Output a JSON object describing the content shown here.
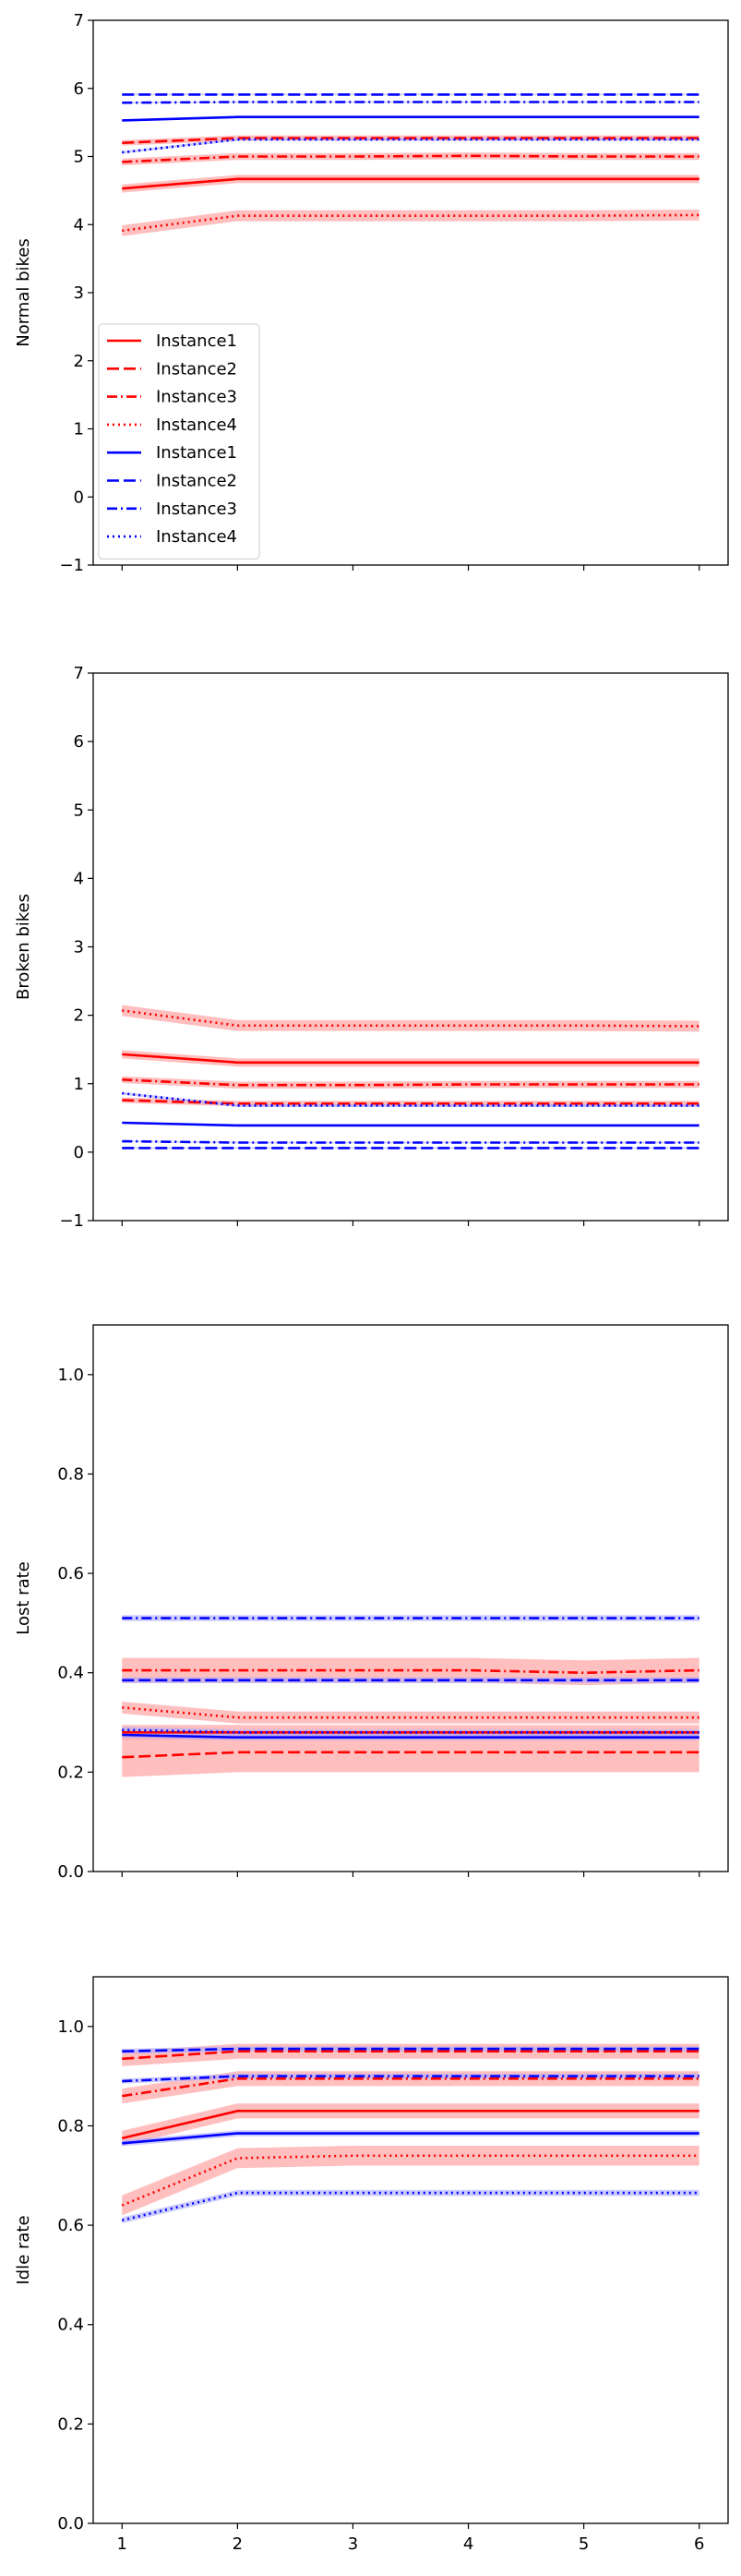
{
  "x_ticks": [
    1,
    2,
    3,
    4,
    5,
    6
  ],
  "colors": {
    "red": "#ff0000",
    "blue": "#0000ff",
    "red_band": "#ffaaaa",
    "blue_band": "#aaaaff"
  },
  "legend": {
    "placement": "center-left",
    "entries": [
      {
        "label": "Instance1",
        "color": "red",
        "style": "solid"
      },
      {
        "label": "Instance2",
        "color": "red",
        "style": "dashed"
      },
      {
        "label": "Instance3",
        "color": "red",
        "style": "dashdot"
      },
      {
        "label": "Instance4",
        "color": "red",
        "style": "dotted"
      },
      {
        "label": "Instance1",
        "color": "blue",
        "style": "solid"
      },
      {
        "label": "Instance2",
        "color": "blue",
        "style": "dashed"
      },
      {
        "label": "Instance3",
        "color": "blue",
        "style": "dashdot"
      },
      {
        "label": "Instance4",
        "color": "blue",
        "style": "dotted"
      }
    ]
  },
  "chart_data": [
    {
      "type": "line",
      "ylabel": "Normal bikes",
      "ylim": [
        -1,
        7
      ],
      "yticks": [
        "−1",
        "0",
        "1",
        "2",
        "3",
        "4",
        "5",
        "6",
        "7"
      ],
      "ytick_values": [
        -1,
        0,
        1,
        2,
        3,
        4,
        5,
        6,
        7
      ],
      "x": [
        1,
        2,
        3,
        4,
        5,
        6
      ],
      "show_xtick_labels": false,
      "series": [
        {
          "name": "Instance1",
          "color": "red",
          "style": "solid",
          "values": [
            4.53,
            4.67,
            4.67,
            4.67,
            4.67,
            4.67
          ],
          "band": 0.06
        },
        {
          "name": "Instance2",
          "color": "red",
          "style": "dashed",
          "values": [
            5.2,
            5.27,
            5.27,
            5.27,
            5.27,
            5.27
          ],
          "band": 0.04
        },
        {
          "name": "Instance3",
          "color": "red",
          "style": "dashdot",
          "values": [
            4.92,
            5.0,
            5.0,
            5.01,
            5.0,
            5.0
          ],
          "band": 0.05
        },
        {
          "name": "Instance4",
          "color": "red",
          "style": "dotted",
          "values": [
            3.91,
            4.13,
            4.13,
            4.13,
            4.13,
            4.14
          ],
          "band": 0.08
        },
        {
          "name": "Instance1",
          "color": "blue",
          "style": "solid",
          "values": [
            5.53,
            5.58,
            5.58,
            5.58,
            5.58,
            5.58
          ],
          "band": 0.01
        },
        {
          "name": "Instance2",
          "color": "blue",
          "style": "dashed",
          "values": [
            5.91,
            5.91,
            5.91,
            5.91,
            5.91,
            5.91
          ],
          "band": 0.01
        },
        {
          "name": "Instance3",
          "color": "blue",
          "style": "dashdot",
          "values": [
            5.79,
            5.8,
            5.8,
            5.8,
            5.8,
            5.8
          ],
          "band": 0.01
        },
        {
          "name": "Instance4",
          "color": "blue",
          "style": "dotted",
          "values": [
            5.06,
            5.25,
            5.25,
            5.25,
            5.25,
            5.25
          ],
          "band": 0.02
        }
      ]
    },
    {
      "type": "line",
      "ylabel": "Broken bikes",
      "ylim": [
        -1,
        7
      ],
      "yticks": [
        "−1",
        "0",
        "1",
        "2",
        "3",
        "4",
        "5",
        "6",
        "7"
      ],
      "ytick_values": [
        -1,
        0,
        1,
        2,
        3,
        4,
        5,
        6,
        7
      ],
      "x": [
        1,
        2,
        3,
        4,
        5,
        6
      ],
      "show_xtick_labels": false,
      "series": [
        {
          "name": "Instance1",
          "color": "red",
          "style": "solid",
          "values": [
            1.43,
            1.31,
            1.31,
            1.31,
            1.31,
            1.31
          ],
          "band": 0.06
        },
        {
          "name": "Instance2",
          "color": "red",
          "style": "dashed",
          "values": [
            0.76,
            0.71,
            0.71,
            0.71,
            0.71,
            0.71
          ],
          "band": 0.04
        },
        {
          "name": "Instance3",
          "color": "red",
          "style": "dashdot",
          "values": [
            1.06,
            0.98,
            0.98,
            0.99,
            0.99,
            0.99
          ],
          "band": 0.05
        },
        {
          "name": "Instance4",
          "color": "red",
          "style": "dotted",
          "values": [
            2.07,
            1.85,
            1.85,
            1.85,
            1.85,
            1.84
          ],
          "band": 0.08
        },
        {
          "name": "Instance1",
          "color": "blue",
          "style": "solid",
          "values": [
            0.43,
            0.39,
            0.39,
            0.39,
            0.39,
            0.39
          ],
          "band": 0.01
        },
        {
          "name": "Instance2",
          "color": "blue",
          "style": "dashed",
          "values": [
            0.06,
            0.06,
            0.06,
            0.06,
            0.06,
            0.06
          ],
          "band": 0.01
        },
        {
          "name": "Instance3",
          "color": "blue",
          "style": "dashdot",
          "values": [
            0.16,
            0.14,
            0.14,
            0.14,
            0.14,
            0.14
          ],
          "band": 0.01
        },
        {
          "name": "Instance4",
          "color": "blue",
          "style": "dotted",
          "values": [
            0.86,
            0.68,
            0.68,
            0.68,
            0.68,
            0.68
          ],
          "band": 0.02
        }
      ]
    },
    {
      "type": "line",
      "ylabel": "Lost rate",
      "ylim": [
        0,
        1.1
      ],
      "yticks": [
        "0.0",
        "0.2",
        "0.4",
        "0.6",
        "0.8",
        "1.0"
      ],
      "ytick_values": [
        0,
        0.2,
        0.4,
        0.6,
        0.8,
        1.0
      ],
      "x": [
        1,
        2,
        3,
        4,
        5,
        6
      ],
      "show_xtick_labels": false,
      "series": [
        {
          "name": "Instance1",
          "color": "red",
          "style": "solid",
          "values": [
            0.28,
            0.28,
            0.28,
            0.28,
            0.28,
            0.28
          ],
          "band": 0.015
        },
        {
          "name": "Instance2",
          "color": "red",
          "style": "dashed",
          "values": [
            0.23,
            0.24,
            0.24,
            0.24,
            0.24,
            0.24
          ],
          "band": 0.04
        },
        {
          "name": "Instance3",
          "color": "red",
          "style": "dashdot",
          "values": [
            0.405,
            0.405,
            0.405,
            0.405,
            0.4,
            0.405
          ],
          "band": 0.025
        },
        {
          "name": "Instance4",
          "color": "red",
          "style": "dotted",
          "values": [
            0.33,
            0.31,
            0.31,
            0.31,
            0.31,
            0.31
          ],
          "band": 0.012
        },
        {
          "name": "Instance1",
          "color": "blue",
          "style": "solid",
          "values": [
            0.275,
            0.27,
            0.27,
            0.27,
            0.27,
            0.27
          ],
          "band": 0.006
        },
        {
          "name": "Instance2",
          "color": "blue",
          "style": "dashed",
          "values": [
            0.385,
            0.385,
            0.385,
            0.385,
            0.385,
            0.385
          ],
          "band": 0.006
        },
        {
          "name": "Instance3",
          "color": "blue",
          "style": "dashdot",
          "values": [
            0.51,
            0.51,
            0.51,
            0.51,
            0.51,
            0.51
          ],
          "band": 0.006
        },
        {
          "name": "Instance4",
          "color": "blue",
          "style": "dotted",
          "values": [
            0.285,
            0.28,
            0.28,
            0.28,
            0.28,
            0.28
          ],
          "band": 0.006
        }
      ]
    },
    {
      "type": "line",
      "ylabel": "Idle rate",
      "ylim": [
        0,
        1.1
      ],
      "yticks": [
        "0.0",
        "0.2",
        "0.4",
        "0.6",
        "0.8",
        "1.0"
      ],
      "ytick_values": [
        0,
        0.2,
        0.4,
        0.6,
        0.8,
        1.0
      ],
      "x": [
        1,
        2,
        3,
        4,
        5,
        6
      ],
      "show_xtick_labels": true,
      "series": [
        {
          "name": "Instance1",
          "color": "red",
          "style": "solid",
          "values": [
            0.775,
            0.83,
            0.83,
            0.83,
            0.83,
            0.83
          ],
          "band": 0.015
        },
        {
          "name": "Instance2",
          "color": "red",
          "style": "dashed",
          "values": [
            0.935,
            0.95,
            0.95,
            0.95,
            0.95,
            0.95
          ],
          "band": 0.015
        },
        {
          "name": "Instance3",
          "color": "red",
          "style": "dashdot",
          "values": [
            0.86,
            0.895,
            0.895,
            0.895,
            0.895,
            0.895
          ],
          "band": 0.015
        },
        {
          "name": "Instance4",
          "color": "red",
          "style": "dotted",
          "values": [
            0.64,
            0.735,
            0.74,
            0.74,
            0.74,
            0.74
          ],
          "band": 0.02
        },
        {
          "name": "Instance1",
          "color": "blue",
          "style": "solid",
          "values": [
            0.765,
            0.785,
            0.785,
            0.785,
            0.785,
            0.785
          ],
          "band": 0.006
        },
        {
          "name": "Instance2",
          "color": "blue",
          "style": "dashed",
          "values": [
            0.95,
            0.955,
            0.955,
            0.955,
            0.955,
            0.955
          ],
          "band": 0.005
        },
        {
          "name": "Instance3",
          "color": "blue",
          "style": "dashdot",
          "values": [
            0.89,
            0.9,
            0.9,
            0.9,
            0.9,
            0.9
          ],
          "band": 0.005
        },
        {
          "name": "Instance4",
          "color": "blue",
          "style": "dotted",
          "values": [
            0.61,
            0.665,
            0.665,
            0.665,
            0.665,
            0.665
          ],
          "band": 0.006
        }
      ]
    }
  ]
}
